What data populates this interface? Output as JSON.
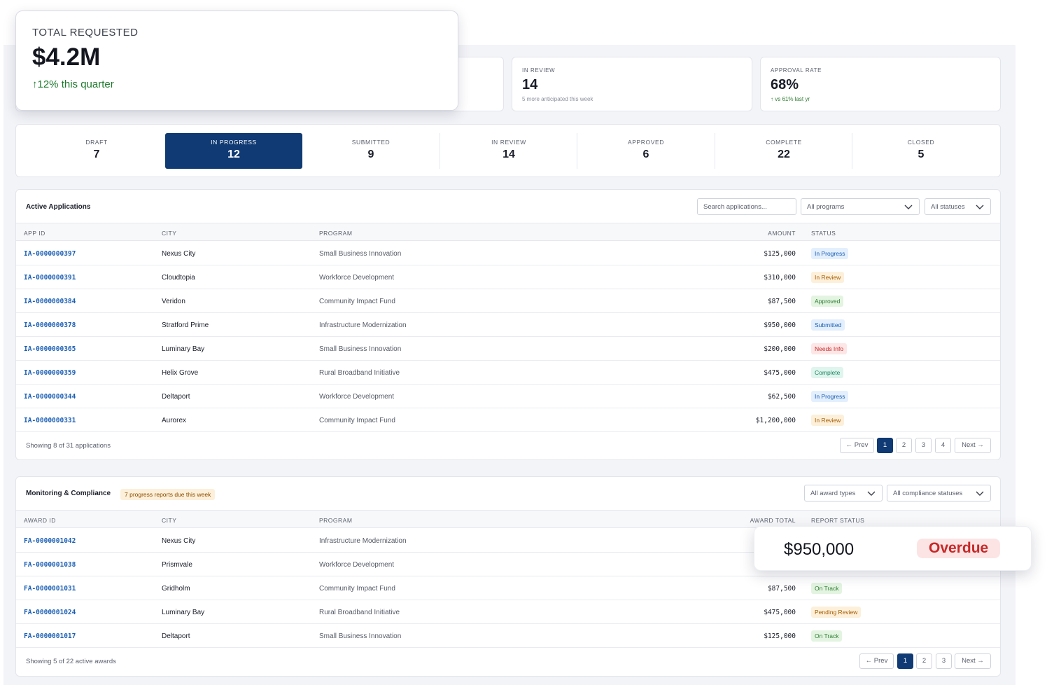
{
  "stats": {
    "total_requested": {
      "label": "TOTAL REQUESTED",
      "value": "$4.2M",
      "trend": "12% this quarter"
    },
    "in_review": {
      "label": "IN REVIEW",
      "value": "14",
      "sub": "5 more anticipated this week"
    },
    "approval_rate": {
      "label": "APPROVAL RATE",
      "value": "68%",
      "sub": "vs 61% last yr"
    }
  },
  "status_tabs": [
    {
      "label": "DRAFT",
      "count": "7"
    },
    {
      "label": "IN PROGRESS",
      "count": "12"
    },
    {
      "label": "SUBMITTED",
      "count": "9"
    },
    {
      "label": "IN REVIEW",
      "count": "14"
    },
    {
      "label": "APPROVED",
      "count": "6"
    },
    {
      "label": "COMPLETE",
      "count": "22"
    },
    {
      "label": "CLOSED",
      "count": "5"
    }
  ],
  "active_apps": {
    "title": "Active Applications",
    "search_placeholder": "Search applications...",
    "program_filter": "All programs",
    "status_filter": "All statuses",
    "columns": [
      "APP ID",
      "CITY",
      "PROGRAM",
      "AMOUNT",
      "STATUS"
    ],
    "rows": [
      {
        "id": "IA-0000000397",
        "city": "Nexus City",
        "program": "Small Business Innovation",
        "amount": "$125,000",
        "status": "In Progress",
        "tone": "blue"
      },
      {
        "id": "IA-0000000391",
        "city": "Cloudtopia",
        "program": "Workforce Development",
        "amount": "$310,000",
        "status": "In Review",
        "tone": "amber"
      },
      {
        "id": "IA-0000000384",
        "city": "Veridon",
        "program": "Community Impact Fund",
        "amount": "$87,500",
        "status": "Approved",
        "tone": "green"
      },
      {
        "id": "IA-0000000378",
        "city": "Stratford Prime",
        "program": "Infrastructure Modernization",
        "amount": "$950,000",
        "status": "Submitted",
        "tone": "blue"
      },
      {
        "id": "IA-0000000365",
        "city": "Luminary Bay",
        "program": "Small Business Innovation",
        "amount": "$200,000",
        "status": "Needs Info",
        "tone": "red"
      },
      {
        "id": "IA-0000000359",
        "city": "Helix Grove",
        "program": "Rural Broadband Initiative",
        "amount": "$475,000",
        "status": "Complete",
        "tone": "teal"
      },
      {
        "id": "IA-0000000344",
        "city": "Deltaport",
        "program": "Workforce Development",
        "amount": "$62,500",
        "status": "In Progress",
        "tone": "blue"
      },
      {
        "id": "IA-0000000331",
        "city": "Aurorex",
        "program": "Community Impact Fund",
        "amount": "$1,200,000",
        "status": "In Review",
        "tone": "amber"
      }
    ],
    "footer": "Showing 8 of 31 applications",
    "pagination": {
      "prev": "← Prev",
      "pages": [
        "1",
        "2",
        "3",
        "4"
      ],
      "next": "Next →"
    }
  },
  "monitoring": {
    "title": "Monitoring & Compliance",
    "alert": "7 progress reports due this week",
    "award_filter": "All award types",
    "compliance_filter": "All compliance statuses",
    "columns": [
      "AWARD ID",
      "CITY",
      "PROGRAM",
      "AWARD TOTAL",
      "REPORT STATUS"
    ],
    "rows": [
      {
        "id": "FA-0000001042",
        "city": "Nexus City",
        "program": "Infrastructure Modernization",
        "amount": "",
        "status": "",
        "tone": ""
      },
      {
        "id": "FA-0000001038",
        "city": "Prismvale",
        "program": "Workforce Development",
        "amount": "",
        "status": "",
        "tone": ""
      },
      {
        "id": "FA-0000001031",
        "city": "Gridholm",
        "program": "Community Impact Fund",
        "amount": "$87,500",
        "status": "On Track",
        "tone": "green"
      },
      {
        "id": "FA-0000001024",
        "city": "Luminary Bay",
        "program": "Rural Broadband Initiative",
        "amount": "$475,000",
        "status": "Pending Review",
        "tone": "amber"
      },
      {
        "id": "FA-0000001017",
        "city": "Deltaport",
        "program": "Small Business Innovation",
        "amount": "$125,000",
        "status": "On Track",
        "tone": "green"
      }
    ],
    "footer": "Showing 5 of 22 active awards",
    "pagination": {
      "prev": "← Prev",
      "pages": [
        "1",
        "2",
        "3"
      ],
      "next": "Next →"
    }
  },
  "highlight": {
    "amount": "$950,000",
    "status": "Overdue"
  }
}
